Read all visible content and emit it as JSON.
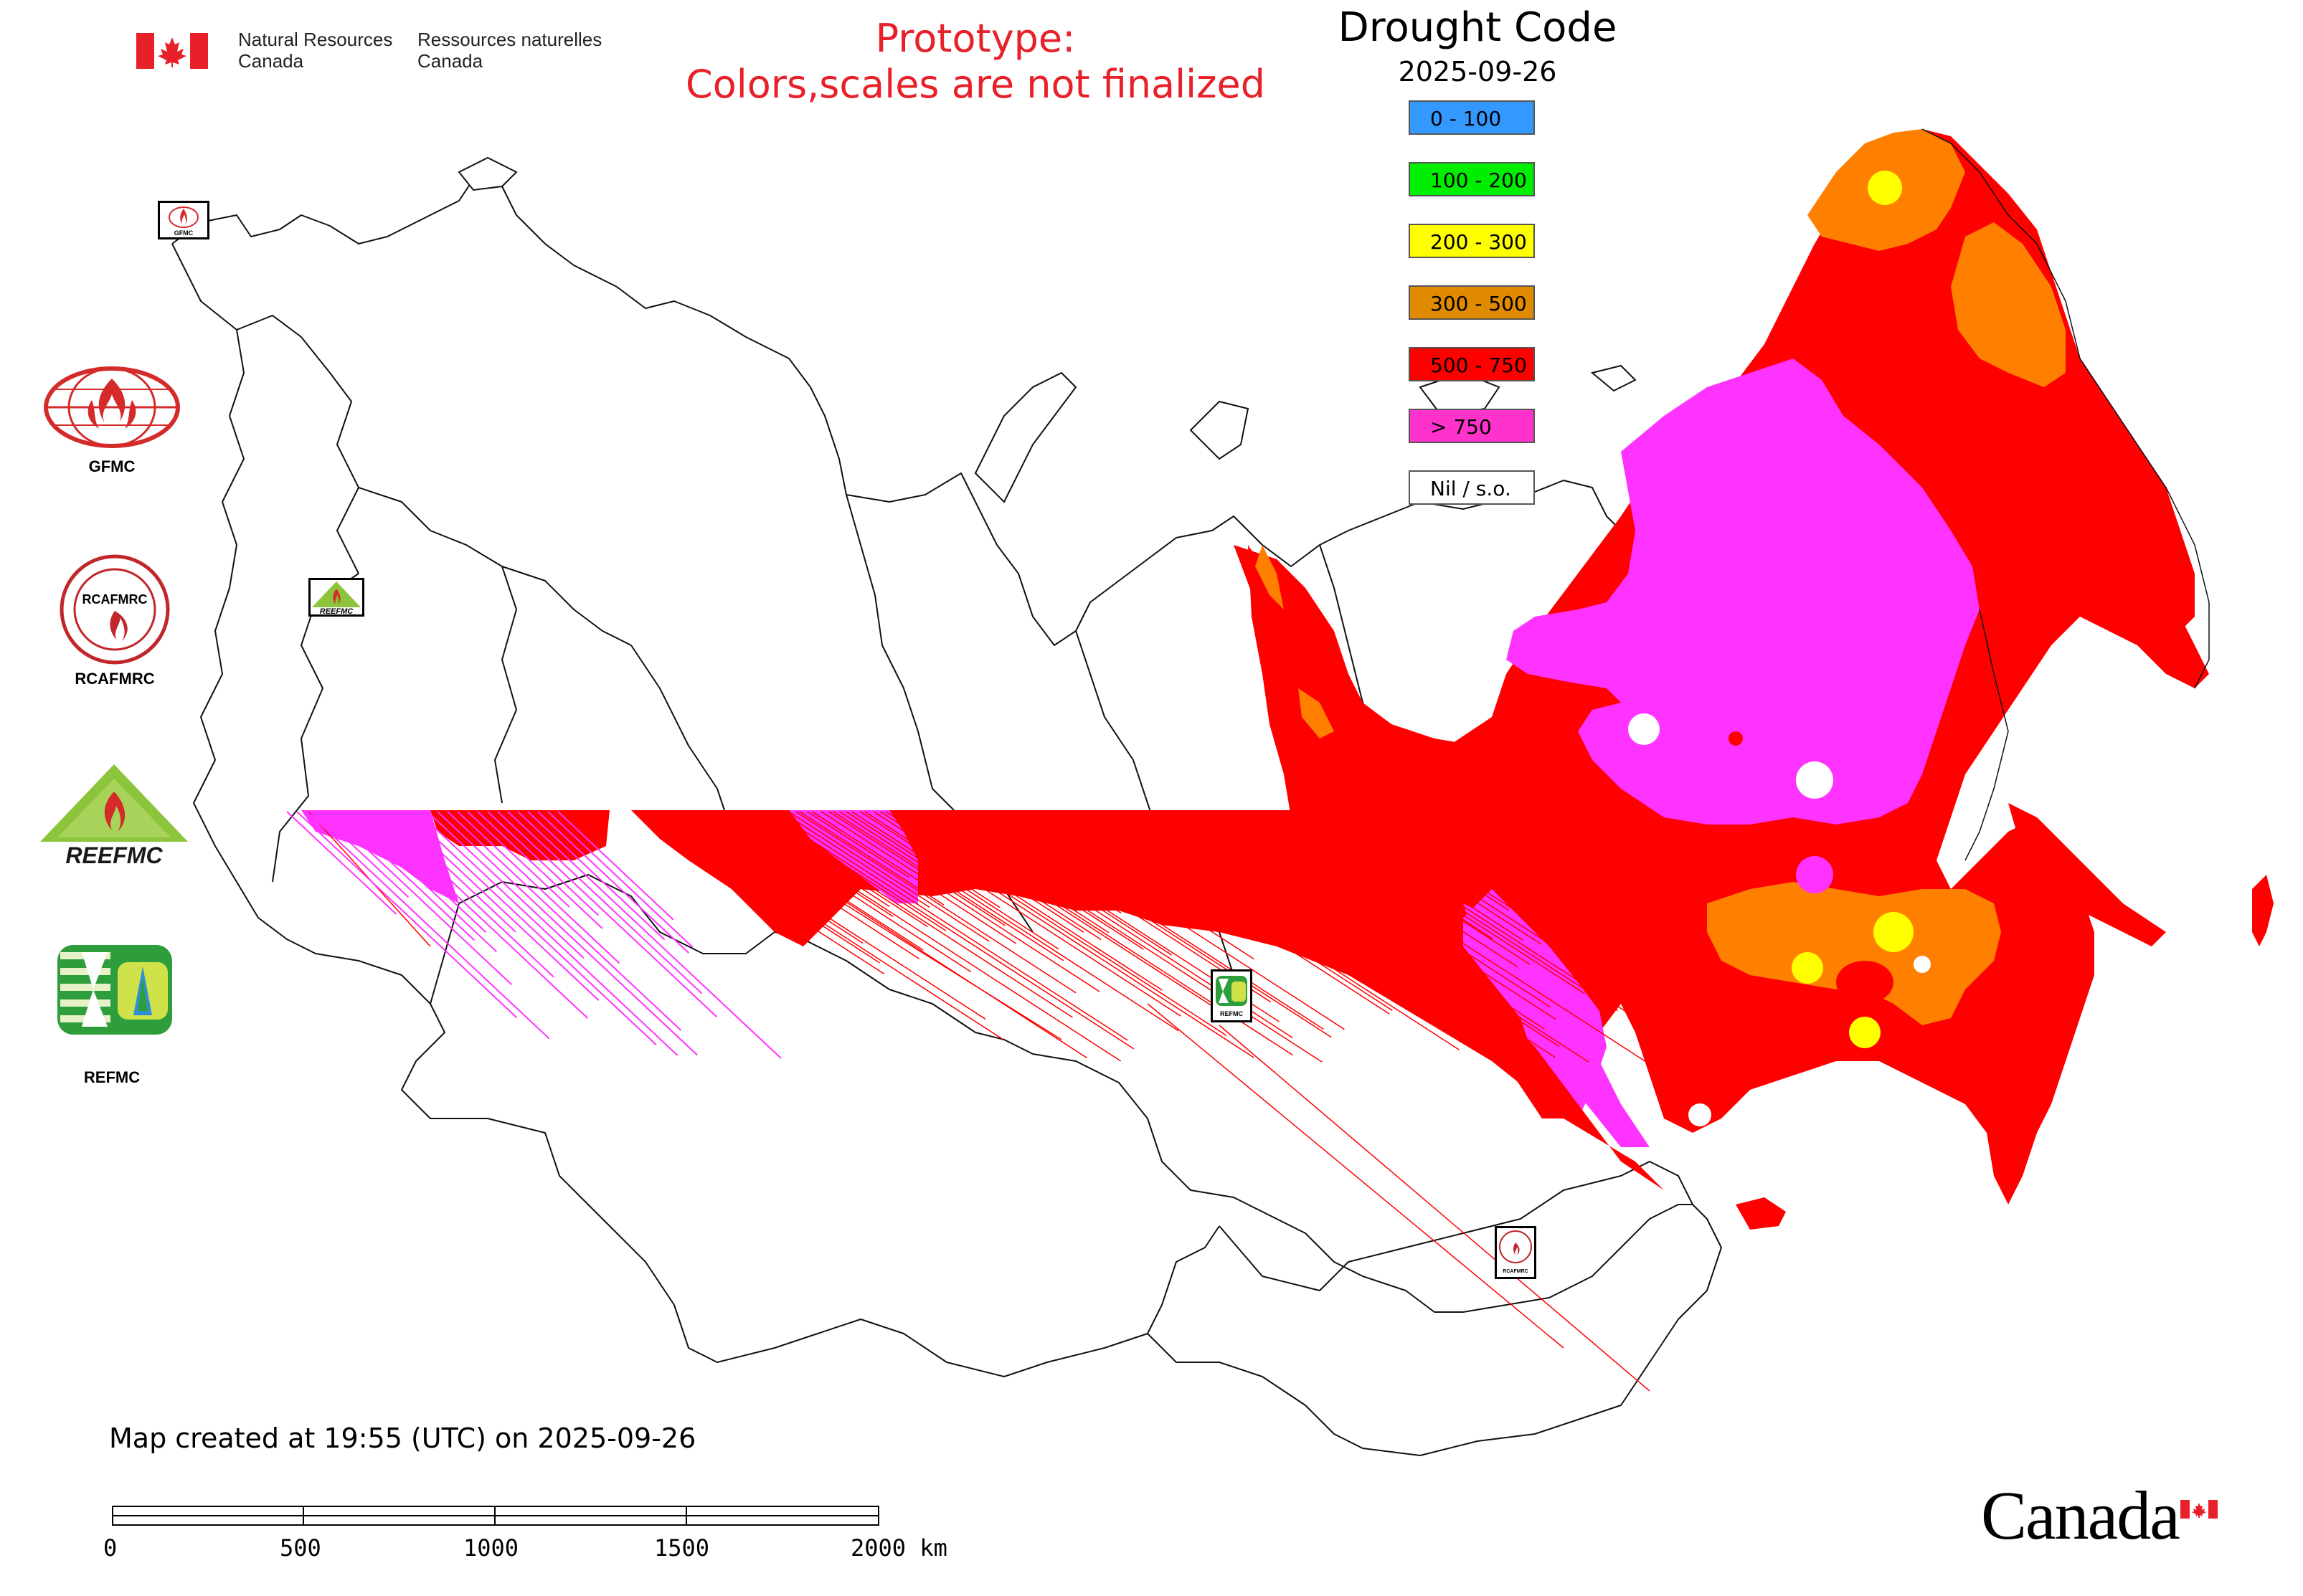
{
  "header": {
    "agency_en_line1": "Natural Resources",
    "agency_en_line2": "Canada",
    "agency_fr_line1": "Ressources naturelles",
    "agency_fr_line2": "Canada",
    "prototype_line1": "Prototype:",
    "prototype_line2": "Colors,scales are not finalized"
  },
  "legend": {
    "title": "Drought Code",
    "date": "2025-09-26",
    "items": [
      {
        "label": "0 - 100",
        "color": "#3399ff"
      },
      {
        "label": "100 - 200",
        "color": "#00ee00"
      },
      {
        "label": "200 - 300",
        "color": "#ffff00"
      },
      {
        "label": "300 - 500",
        "color": "#e08a00"
      },
      {
        "label": "500 - 750",
        "color": "#ff0000"
      },
      {
        "label": "> 750",
        "color": "#ff33cc"
      },
      {
        "label": "Nil / s.o.",
        "color": "#ffffff"
      }
    ]
  },
  "side_logos": [
    {
      "label": "GFMC",
      "icon": "gfmc-logo-icon"
    },
    {
      "label": "RCAFMRC",
      "icon": "rcafmrc-logo-icon"
    },
    {
      "label": "",
      "icon": "reefmc-logo-icon",
      "text_in_logo": "REEFMC"
    },
    {
      "label": "REFMC",
      "icon": "refmc-logo-icon"
    }
  ],
  "map_markers": [
    {
      "icon": "gfmc-marker-icon",
      "text_in_logo": "GFMC"
    },
    {
      "icon": "reefmc-marker-icon",
      "text_in_logo": "REEFMC"
    },
    {
      "icon": "refmc-marker-icon",
      "text_in_logo": "REFMC"
    },
    {
      "icon": "rcafmrc-marker-icon",
      "text_in_logo": "RCAFMRC"
    }
  ],
  "footer": {
    "created": "Map created at 19:55 (UTC) on 2025-09-26",
    "scale_ticks": [
      "0",
      "500",
      "1000",
      "1500",
      "2000 km"
    ],
    "wordmark": "Canada"
  },
  "colors": {
    "pink": "#ff33ff",
    "red": "#ff0000",
    "orange": "#ff8000",
    "yellow": "#ffff00",
    "prototype_text": "#e8202a"
  }
}
